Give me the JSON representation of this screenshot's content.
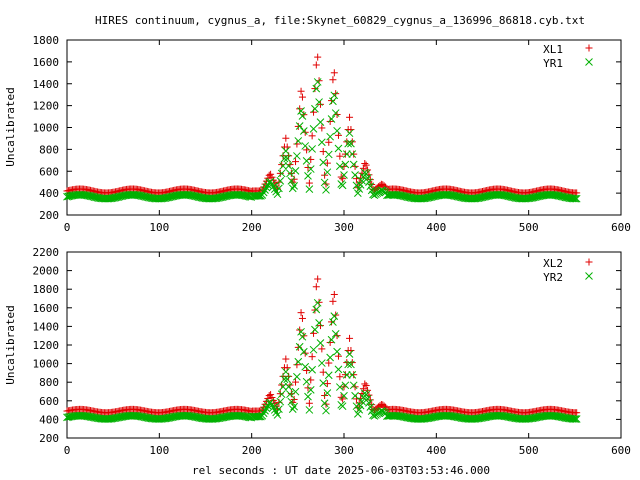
{
  "title": "HIRES continuum, cygnus_a, file:Skynet_60829_cygnus_a_136996_86818.cyb.txt",
  "xlabel": "rel seconds : UT date 2025-06-03T03:53:46.000",
  "colors": {
    "red": "#e00000",
    "green": "#00b000"
  },
  "chart_data": [
    {
      "type": "scatter",
      "ylabel": "Uncalibrated",
      "xlim": [
        0,
        600
      ],
      "ylim": [
        200,
        1800
      ],
      "xticks": [
        0,
        100,
        200,
        300,
        400,
        500,
        600
      ],
      "yticks": [
        200,
        400,
        600,
        800,
        1000,
        1200,
        1400,
        1600,
        1800
      ],
      "legend_position": "top-right",
      "grid": false,
      "series": [
        {
          "name": "XL1",
          "marker": "plus",
          "color": "#e00000",
          "baseline": 420,
          "peak": 1730
        },
        {
          "name": "YR1",
          "marker": "cross",
          "color": "#00b000",
          "baseline": 375,
          "peak": 1490
        }
      ]
    },
    {
      "type": "scatter",
      "ylabel": "Uncalibrated",
      "xlim": [
        0,
        600
      ],
      "ylim": [
        200,
        2200
      ],
      "xticks": [
        0,
        100,
        200,
        300,
        400,
        500,
        600
      ],
      "yticks": [
        200,
        400,
        600,
        800,
        1000,
        1200,
        1400,
        1600,
        1800,
        2000,
        2200
      ],
      "legend_position": "top-right",
      "grid": false,
      "series": [
        {
          "name": "XL2",
          "marker": "plus",
          "color": "#e00000",
          "baseline": 490,
          "peak": 2010
        },
        {
          "name": "YR2",
          "marker": "cross",
          "color": "#00b000",
          "baseline": 430,
          "peak": 1740
        }
      ]
    }
  ]
}
